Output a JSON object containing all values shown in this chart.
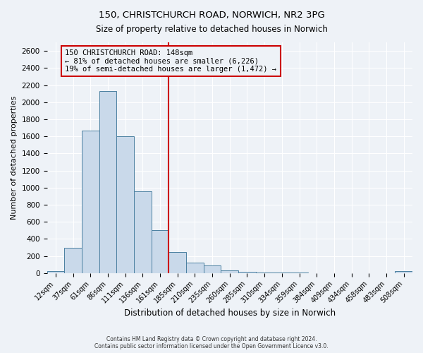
{
  "title": "150, CHRISTCHURCH ROAD, NORWICH, NR2 3PG",
  "subtitle": "Size of property relative to detached houses in Norwich",
  "xlabel": "Distribution of detached houses by size in Norwich",
  "ylabel": "Number of detached properties",
  "bar_labels": [
    "12sqm",
    "37sqm",
    "61sqm",
    "86sqm",
    "111sqm",
    "136sqm",
    "161sqm",
    "185sqm",
    "210sqm",
    "235sqm",
    "260sqm",
    "285sqm",
    "310sqm",
    "334sqm",
    "359sqm",
    "384sqm",
    "409sqm",
    "434sqm",
    "458sqm",
    "483sqm",
    "508sqm"
  ],
  "bar_values": [
    20,
    295,
    1670,
    2130,
    1600,
    960,
    505,
    250,
    120,
    90,
    35,
    15,
    8,
    4,
    3,
    2,
    1,
    1,
    1,
    1,
    20
  ],
  "bar_color": "#c9d9ea",
  "bar_edge_color": "#4a7fa0",
  "vline_x": 6.5,
  "vline_color": "#cc0000",
  "annotation_line1": "150 CHRISTCHURCH ROAD: 148sqm",
  "annotation_line2": "← 81% of detached houses are smaller (6,226)",
  "annotation_line3": "19% of semi-detached houses are larger (1,472) →",
  "annotation_box_color": "#cc0000",
  "ylim": [
    0,
    2700
  ],
  "yticks": [
    0,
    200,
    400,
    600,
    800,
    1000,
    1200,
    1400,
    1600,
    1800,
    2000,
    2200,
    2400,
    2600
  ],
  "bg_color": "#eef2f7",
  "grid_color": "#ffffff",
  "footer_line1": "Contains HM Land Registry data © Crown copyright and database right 2024.",
  "footer_line2": "Contains public sector information licensed under the Open Government Licence v3.0."
}
